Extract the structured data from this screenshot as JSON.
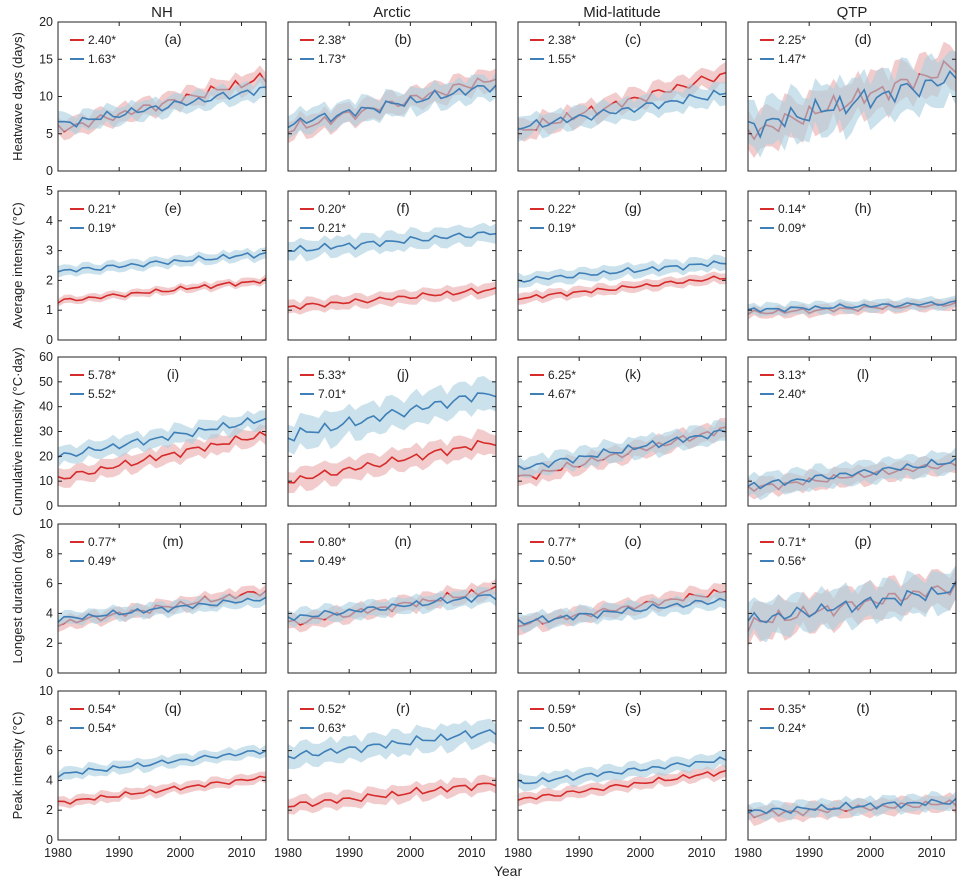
{
  "chart_data": {
    "type": "line",
    "columns": [
      "NH",
      "Arctic",
      "Mid-latitude",
      "QTP"
    ],
    "xlabel": "Year",
    "x_range": [
      1980,
      2014
    ],
    "x_ticks": [
      1980,
      1990,
      2000,
      2010
    ],
    "x_tick_labels": [
      "1980",
      "1990",
      "2000",
      "2010"
    ],
    "series_colors": {
      "red": "#d62b2b",
      "blue": "#3f7fb8",
      "red_band": "#e8a3a3",
      "blue_band": "#a8cfe0"
    },
    "rows": [
      {
        "ylabel": "Heatwave days (days)",
        "ylim": [
          0,
          20
        ],
        "yticks": [
          0,
          5,
          10,
          15,
          20
        ],
        "ytick_labels": [
          "0",
          "5",
          "10",
          "15",
          "20"
        ]
      },
      {
        "ylabel": "Average intensity (°C)",
        "ylim": [
          0,
          5
        ],
        "yticks": [
          0,
          1,
          2,
          3,
          4,
          5
        ],
        "ytick_labels": [
          "0",
          "1",
          "2",
          "3",
          "4",
          "5"
        ]
      },
      {
        "ylabel": "Cumulative intensity (°C·day)",
        "ylim": [
          0,
          60
        ],
        "yticks": [
          0,
          10,
          20,
          30,
          40,
          50,
          60
        ],
        "ytick_labels": [
          "0",
          "10",
          "20",
          "30",
          "40",
          "50",
          "60"
        ]
      },
      {
        "ylabel": "Longest duration (day)",
        "ylim": [
          0,
          10
        ],
        "yticks": [
          0,
          2,
          4,
          6,
          8,
          10
        ],
        "ytick_labels": [
          "0",
          "2",
          "4",
          "6",
          "8",
          "10"
        ]
      },
      {
        "ylabel": "Peak intensity (°C)",
        "ylim": [
          0,
          10
        ],
        "yticks": [
          0,
          2,
          4,
          6,
          8,
          10
        ],
        "ytick_labels": [
          "0",
          "2",
          "4",
          "6",
          "8",
          "10"
        ]
      }
    ],
    "panels": [
      {
        "label": "(a)",
        "row": 0,
        "col": 0,
        "red_trend": "2.40*",
        "blue_trend": "1.63*",
        "red": {
          "start": 5.5,
          "end": 12.5,
          "amp": 0.9,
          "band": 1.4
        },
        "blue": {
          "start": 6.2,
          "end": 11.0,
          "amp": 0.8,
          "band": 1.4
        }
      },
      {
        "label": "(b)",
        "row": 0,
        "col": 1,
        "red_trend": "2.38*",
        "blue_trend": "1.73*",
        "red": {
          "start": 5.5,
          "end": 12.5,
          "amp": 1.0,
          "band": 1.6
        },
        "blue": {
          "start": 6.3,
          "end": 11.5,
          "amp": 0.9,
          "band": 1.8
        }
      },
      {
        "label": "(c)",
        "row": 0,
        "col": 2,
        "red_trend": "2.38*",
        "blue_trend": "1.55*",
        "red": {
          "start": 5.3,
          "end": 13.0,
          "amp": 0.9,
          "band": 1.5
        },
        "blue": {
          "start": 5.8,
          "end": 10.5,
          "amp": 0.8,
          "band": 1.6
        }
      },
      {
        "label": "(d)",
        "row": 0,
        "col": 3,
        "red_trend": "2.25*",
        "blue_trend": "1.47*",
        "red": {
          "start": 5.0,
          "end": 14.0,
          "amp": 1.6,
          "band": 3.0
        },
        "blue": {
          "start": 5.8,
          "end": 12.5,
          "amp": 1.8,
          "band": 3.6
        }
      },
      {
        "label": "(e)",
        "row": 1,
        "col": 0,
        "red_trend": "0.21*",
        "blue_trend": "0.19*",
        "red": {
          "start": 1.3,
          "end": 2.0,
          "amp": 0.1,
          "band": 0.15
        },
        "blue": {
          "start": 2.3,
          "end": 2.9,
          "amp": 0.12,
          "band": 0.2
        }
      },
      {
        "label": "(f)",
        "row": 1,
        "col": 1,
        "red_trend": "0.20*",
        "blue_trend": "0.21*",
        "red": {
          "start": 1.1,
          "end": 1.7,
          "amp": 0.12,
          "band": 0.25
        },
        "blue": {
          "start": 3.0,
          "end": 3.6,
          "amp": 0.15,
          "band": 0.35
        }
      },
      {
        "label": "(g)",
        "row": 1,
        "col": 2,
        "red_trend": "0.22*",
        "blue_trend": "0.19*",
        "red": {
          "start": 1.4,
          "end": 2.1,
          "amp": 0.1,
          "band": 0.2
        },
        "blue": {
          "start": 2.0,
          "end": 2.6,
          "amp": 0.12,
          "band": 0.25
        }
      },
      {
        "label": "(h)",
        "row": 1,
        "col": 3,
        "red_trend": "0.14*",
        "blue_trend": "0.09*",
        "red": {
          "start": 0.9,
          "end": 1.2,
          "amp": 0.1,
          "band": 0.2
        },
        "blue": {
          "start": 1.0,
          "end": 1.25,
          "amp": 0.1,
          "band": 0.22
        }
      },
      {
        "label": "(i)",
        "row": 2,
        "col": 0,
        "red_trend": "5.78*",
        "blue_trend": "5.52*",
        "red": {
          "start": 11.0,
          "end": 29.0,
          "amp": 2.0,
          "band": 4.0
        },
        "blue": {
          "start": 20.0,
          "end": 35.0,
          "amp": 2.0,
          "band": 4.0
        }
      },
      {
        "label": "(j)",
        "row": 2,
        "col": 1,
        "red_trend": "5.33*",
        "blue_trend": "7.01*",
        "red": {
          "start": 10.0,
          "end": 26.0,
          "amp": 2.2,
          "band": 5.0
        },
        "blue": {
          "start": 28.0,
          "end": 46.0,
          "amp": 3.0,
          "band": 7.0
        }
      },
      {
        "label": "(k)",
        "row": 2,
        "col": 2,
        "red_trend": "6.25*",
        "blue_trend": "4.67*",
        "red": {
          "start": 11.0,
          "end": 31.0,
          "amp": 2.2,
          "band": 4.0
        },
        "blue": {
          "start": 15.0,
          "end": 30.0,
          "amp": 2.0,
          "band": 4.5
        }
      },
      {
        "label": "(l)",
        "row": 2,
        "col": 3,
        "red_trend": "3.13*",
        "blue_trend": "2.40*",
        "red": {
          "start": 7.0,
          "end": 17.0,
          "amp": 1.8,
          "band": 4.0
        },
        "blue": {
          "start": 8.0,
          "end": 18.0,
          "amp": 2.0,
          "band": 5.0
        }
      },
      {
        "label": "(m)",
        "row": 3,
        "col": 0,
        "red_trend": "0.77*",
        "blue_trend": "0.49*",
        "red": {
          "start": 3.3,
          "end": 5.5,
          "amp": 0.3,
          "band": 0.5
        },
        "blue": {
          "start": 3.6,
          "end": 5.0,
          "amp": 0.25,
          "band": 0.5
        }
      },
      {
        "label": "(n)",
        "row": 3,
        "col": 1,
        "red_trend": "0.80*",
        "blue_trend": "0.49*",
        "red": {
          "start": 3.3,
          "end": 5.6,
          "amp": 0.35,
          "band": 0.6
        },
        "blue": {
          "start": 3.7,
          "end": 5.2,
          "amp": 0.3,
          "band": 0.6
        }
      },
      {
        "label": "(o)",
        "row": 3,
        "col": 2,
        "red_trend": "0.77*",
        "blue_trend": "0.50*",
        "red": {
          "start": 3.2,
          "end": 5.5,
          "amp": 0.3,
          "band": 0.6
        },
        "blue": {
          "start": 3.4,
          "end": 4.9,
          "amp": 0.3,
          "band": 0.6
        }
      },
      {
        "label": "(p)",
        "row": 3,
        "col": 3,
        "red_trend": "0.71*",
        "blue_trend": "0.56*",
        "red": {
          "start": 3.3,
          "end": 5.8,
          "amp": 0.6,
          "band": 1.3
        },
        "blue": {
          "start": 3.5,
          "end": 5.6,
          "amp": 0.6,
          "band": 1.4
        }
      },
      {
        "label": "(q)",
        "row": 4,
        "col": 0,
        "red_trend": "0.54*",
        "blue_trend": "0.54*",
        "red": {
          "start": 2.5,
          "end": 4.2,
          "amp": 0.2,
          "band": 0.4
        },
        "blue": {
          "start": 4.4,
          "end": 6.0,
          "amp": 0.22,
          "band": 0.45
        }
      },
      {
        "label": "(r)",
        "row": 4,
        "col": 1,
        "red_trend": "0.52*",
        "blue_trend": "0.63*",
        "red": {
          "start": 2.3,
          "end": 3.8,
          "amp": 0.3,
          "band": 0.6
        },
        "blue": {
          "start": 5.6,
          "end": 7.3,
          "amp": 0.35,
          "band": 0.9
        }
      },
      {
        "label": "(s)",
        "row": 4,
        "col": 2,
        "red_trend": "0.59*",
        "blue_trend": "0.50*",
        "red": {
          "start": 2.7,
          "end": 4.6,
          "amp": 0.22,
          "band": 0.45
        },
        "blue": {
          "start": 3.8,
          "end": 5.4,
          "amp": 0.25,
          "band": 0.55
        }
      },
      {
        "label": "(t)",
        "row": 4,
        "col": 3,
        "red_trend": "0.35*",
        "blue_trend": "0.24*",
        "red": {
          "start": 1.7,
          "end": 2.5,
          "amp": 0.3,
          "band": 0.6
        },
        "blue": {
          "start": 1.9,
          "end": 2.6,
          "amp": 0.3,
          "band": 0.6
        }
      }
    ]
  }
}
